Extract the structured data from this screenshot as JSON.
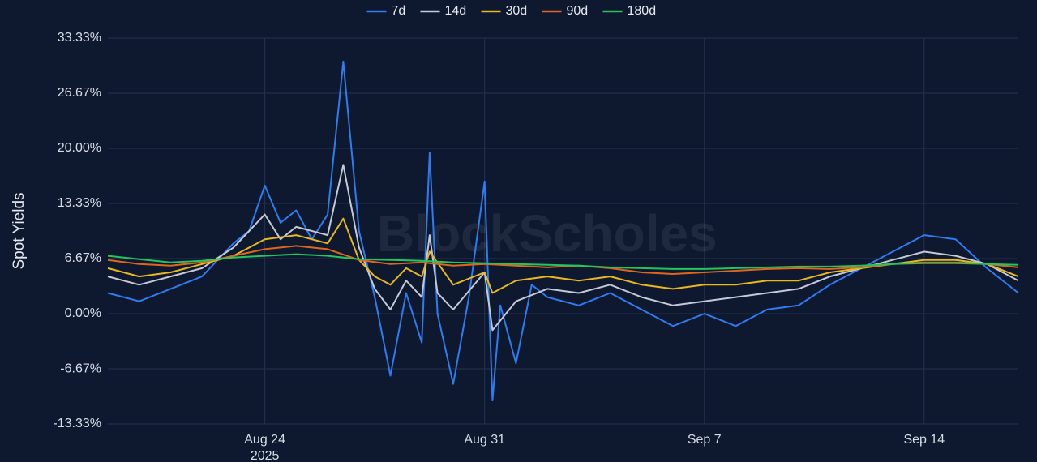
{
  "chart_data": {
    "type": "line",
    "title": "",
    "xlabel": "",
    "ylabel": "Spot Yields",
    "watermark": "BlockScholes",
    "yticks": [
      "33.33%",
      "26.67%",
      "20.00%",
      "13.33%",
      "6.67%",
      "0.00%",
      "-6.67%",
      "-13.33%"
    ],
    "ylim": [
      -13.33,
      33.33
    ],
    "xlim": [
      "2025-08-19",
      "2025-09-17"
    ],
    "xticks": [
      {
        "date": "2025-08-24",
        "label": "Aug 24",
        "sublabel": "2025"
      },
      {
        "date": "2025-08-31",
        "label": "Aug 31",
        "sublabel": ""
      },
      {
        "date": "2025-09-07",
        "label": "Sep 7",
        "sublabel": ""
      },
      {
        "date": "2025-09-14",
        "label": "Sep 14",
        "sublabel": ""
      }
    ],
    "legend_position": "top-center",
    "grid": true,
    "series": [
      {
        "name": "7d",
        "color": "#2f7bf0",
        "points": [
          [
            "2025-08-19",
            2.5
          ],
          [
            "2025-08-20",
            1.5
          ],
          [
            "2025-08-21",
            3.0
          ],
          [
            "2025-08-22",
            4.5
          ],
          [
            "2025-08-22 12:00",
            6.5
          ],
          [
            "2025-08-23",
            8.5
          ],
          [
            "2025-08-23 12:00",
            10.0
          ],
          [
            "2025-08-24",
            15.5
          ],
          [
            "2025-08-24 12:00",
            11.0
          ],
          [
            "2025-08-25",
            12.5
          ],
          [
            "2025-08-25 12:00",
            9.0
          ],
          [
            "2025-08-26",
            12.0
          ],
          [
            "2025-08-26 12:00",
            30.5
          ],
          [
            "2025-08-27",
            10.0
          ],
          [
            "2025-08-27 12:00",
            2.0
          ],
          [
            "2025-08-28",
            -7.5
          ],
          [
            "2025-08-28 12:00",
            2.5
          ],
          [
            "2025-08-29",
            -3.5
          ],
          [
            "2025-08-29 06:00",
            19.5
          ],
          [
            "2025-08-29 12:00",
            0.0
          ],
          [
            "2025-08-30",
            -8.5
          ],
          [
            "2025-08-30 12:00",
            2.0
          ],
          [
            "2025-08-31",
            16.0
          ],
          [
            "2025-08-31 06:00",
            -10.5
          ],
          [
            "2025-08-31 12:00",
            1.0
          ],
          [
            "2025-09-01",
            -6.0
          ],
          [
            "2025-09-01 12:00",
            3.5
          ],
          [
            "2025-09-02",
            2.0
          ],
          [
            "2025-09-03",
            1.0
          ],
          [
            "2025-09-04",
            2.5
          ],
          [
            "2025-09-05",
            0.5
          ],
          [
            "2025-09-06",
            -1.5
          ],
          [
            "2025-09-07",
            0.0
          ],
          [
            "2025-09-08",
            -1.5
          ],
          [
            "2025-09-09",
            0.5
          ],
          [
            "2025-09-10",
            1.0
          ],
          [
            "2025-09-11",
            3.5
          ],
          [
            "2025-09-12",
            5.5
          ],
          [
            "2025-09-13",
            7.5
          ],
          [
            "2025-09-14",
            9.5
          ],
          [
            "2025-09-15",
            9.0
          ],
          [
            "2025-09-16",
            5.5
          ],
          [
            "2025-09-17",
            2.5
          ]
        ]
      },
      {
        "name": "14d",
        "color": "#c4c9d6",
        "points": [
          [
            "2025-08-19",
            4.5
          ],
          [
            "2025-08-20",
            3.5
          ],
          [
            "2025-08-21",
            4.5
          ],
          [
            "2025-08-22",
            5.5
          ],
          [
            "2025-08-23",
            8.0
          ],
          [
            "2025-08-24",
            12.0
          ],
          [
            "2025-08-24 12:00",
            9.0
          ],
          [
            "2025-08-25",
            10.5
          ],
          [
            "2025-08-26",
            9.5
          ],
          [
            "2025-08-26 12:00",
            18.0
          ],
          [
            "2025-08-27",
            8.0
          ],
          [
            "2025-08-27 12:00",
            3.0
          ],
          [
            "2025-08-28",
            0.5
          ],
          [
            "2025-08-28 12:00",
            4.0
          ],
          [
            "2025-08-29",
            2.0
          ],
          [
            "2025-08-29 06:00",
            9.5
          ],
          [
            "2025-08-29 12:00",
            2.5
          ],
          [
            "2025-08-30",
            0.5
          ],
          [
            "2025-08-31",
            5.0
          ],
          [
            "2025-08-31 06:00",
            -2.0
          ],
          [
            "2025-09-01",
            1.5
          ],
          [
            "2025-09-02",
            3.0
          ],
          [
            "2025-09-03",
            2.5
          ],
          [
            "2025-09-04",
            3.5
          ],
          [
            "2025-09-05",
            2.0
          ],
          [
            "2025-09-06",
            1.0
          ],
          [
            "2025-09-07",
            1.5
          ],
          [
            "2025-09-08",
            2.0
          ],
          [
            "2025-09-09",
            2.5
          ],
          [
            "2025-09-10",
            3.0
          ],
          [
            "2025-09-11",
            4.5
          ],
          [
            "2025-09-12",
            5.5
          ],
          [
            "2025-09-13",
            6.5
          ],
          [
            "2025-09-14",
            7.5
          ],
          [
            "2025-09-15",
            7.0
          ],
          [
            "2025-09-16",
            6.0
          ],
          [
            "2025-09-17",
            4.0
          ]
        ]
      },
      {
        "name": "30d",
        "color": "#e8b820",
        "points": [
          [
            "2025-08-19",
            5.5
          ],
          [
            "2025-08-20",
            4.5
          ],
          [
            "2025-08-21",
            5.0
          ],
          [
            "2025-08-22",
            6.0
          ],
          [
            "2025-08-23",
            7.0
          ],
          [
            "2025-08-24",
            9.0
          ],
          [
            "2025-08-25",
            9.5
          ],
          [
            "2025-08-26",
            8.5
          ],
          [
            "2025-08-26 12:00",
            11.5
          ],
          [
            "2025-08-27",
            6.5
          ],
          [
            "2025-08-27 12:00",
            4.5
          ],
          [
            "2025-08-28",
            3.5
          ],
          [
            "2025-08-28 12:00",
            5.5
          ],
          [
            "2025-08-29",
            4.5
          ],
          [
            "2025-08-29 06:00",
            7.5
          ],
          [
            "2025-08-30",
            3.5
          ],
          [
            "2025-08-31",
            5.0
          ],
          [
            "2025-08-31 06:00",
            2.5
          ],
          [
            "2025-09-01",
            4.0
          ],
          [
            "2025-09-02",
            4.5
          ],
          [
            "2025-09-03",
            4.0
          ],
          [
            "2025-09-04",
            4.5
          ],
          [
            "2025-09-05",
            3.5
          ],
          [
            "2025-09-06",
            3.0
          ],
          [
            "2025-09-07",
            3.5
          ],
          [
            "2025-09-08",
            3.5
          ],
          [
            "2025-09-09",
            4.0
          ],
          [
            "2025-09-10",
            4.0
          ],
          [
            "2025-09-11",
            5.0
          ],
          [
            "2025-09-12",
            5.5
          ],
          [
            "2025-09-13",
            6.0
          ],
          [
            "2025-09-14",
            6.5
          ],
          [
            "2025-09-15",
            6.5
          ],
          [
            "2025-09-16",
            6.0
          ],
          [
            "2025-09-17",
            4.5
          ]
        ]
      },
      {
        "name": "90d",
        "color": "#e0661c",
        "points": [
          [
            "2025-08-19",
            6.5
          ],
          [
            "2025-08-20",
            6.0
          ],
          [
            "2025-08-21",
            5.8
          ],
          [
            "2025-08-22",
            6.2
          ],
          [
            "2025-08-23",
            7.0
          ],
          [
            "2025-08-24",
            7.8
          ],
          [
            "2025-08-25",
            8.2
          ],
          [
            "2025-08-26",
            7.8
          ],
          [
            "2025-08-27",
            6.5
          ],
          [
            "2025-08-28",
            6.0
          ],
          [
            "2025-08-29",
            6.2
          ],
          [
            "2025-08-30",
            5.8
          ],
          [
            "2025-08-31",
            6.0
          ],
          [
            "2025-09-01",
            5.8
          ],
          [
            "2025-09-02",
            5.6
          ],
          [
            "2025-09-03",
            5.8
          ],
          [
            "2025-09-04",
            5.5
          ],
          [
            "2025-09-05",
            5.0
          ],
          [
            "2025-09-06",
            4.8
          ],
          [
            "2025-09-07",
            5.0
          ],
          [
            "2025-09-08",
            5.2
          ],
          [
            "2025-09-09",
            5.4
          ],
          [
            "2025-09-10",
            5.5
          ],
          [
            "2025-09-11",
            5.4
          ],
          [
            "2025-09-12",
            5.6
          ],
          [
            "2025-09-13",
            6.0
          ],
          [
            "2025-09-14",
            6.2
          ],
          [
            "2025-09-15",
            6.2
          ],
          [
            "2025-09-16",
            6.0
          ],
          [
            "2025-09-17",
            5.6
          ]
        ]
      },
      {
        "name": "180d",
        "color": "#22c55e",
        "points": [
          [
            "2025-08-19",
            7.0
          ],
          [
            "2025-08-20",
            6.6
          ],
          [
            "2025-08-21",
            6.2
          ],
          [
            "2025-08-22",
            6.4
          ],
          [
            "2025-08-23",
            6.8
          ],
          [
            "2025-08-24",
            7.0
          ],
          [
            "2025-08-25",
            7.2
          ],
          [
            "2025-08-26",
            7.0
          ],
          [
            "2025-08-27",
            6.6
          ],
          [
            "2025-08-28",
            6.5
          ],
          [
            "2025-08-29",
            6.4
          ],
          [
            "2025-08-30",
            6.2
          ],
          [
            "2025-08-31",
            6.1
          ],
          [
            "2025-09-01",
            6.0
          ],
          [
            "2025-09-02",
            5.9
          ],
          [
            "2025-09-03",
            5.8
          ],
          [
            "2025-09-04",
            5.6
          ],
          [
            "2025-09-05",
            5.5
          ],
          [
            "2025-09-06",
            5.4
          ],
          [
            "2025-09-07",
            5.4
          ],
          [
            "2025-09-08",
            5.5
          ],
          [
            "2025-09-09",
            5.6
          ],
          [
            "2025-09-10",
            5.7
          ],
          [
            "2025-09-11",
            5.7
          ],
          [
            "2025-09-12",
            5.8
          ],
          [
            "2025-09-13",
            6.0
          ],
          [
            "2025-09-14",
            6.1
          ],
          [
            "2025-09-15",
            6.1
          ],
          [
            "2025-09-16",
            6.0
          ],
          [
            "2025-09-17",
            5.9
          ]
        ]
      }
    ]
  }
}
